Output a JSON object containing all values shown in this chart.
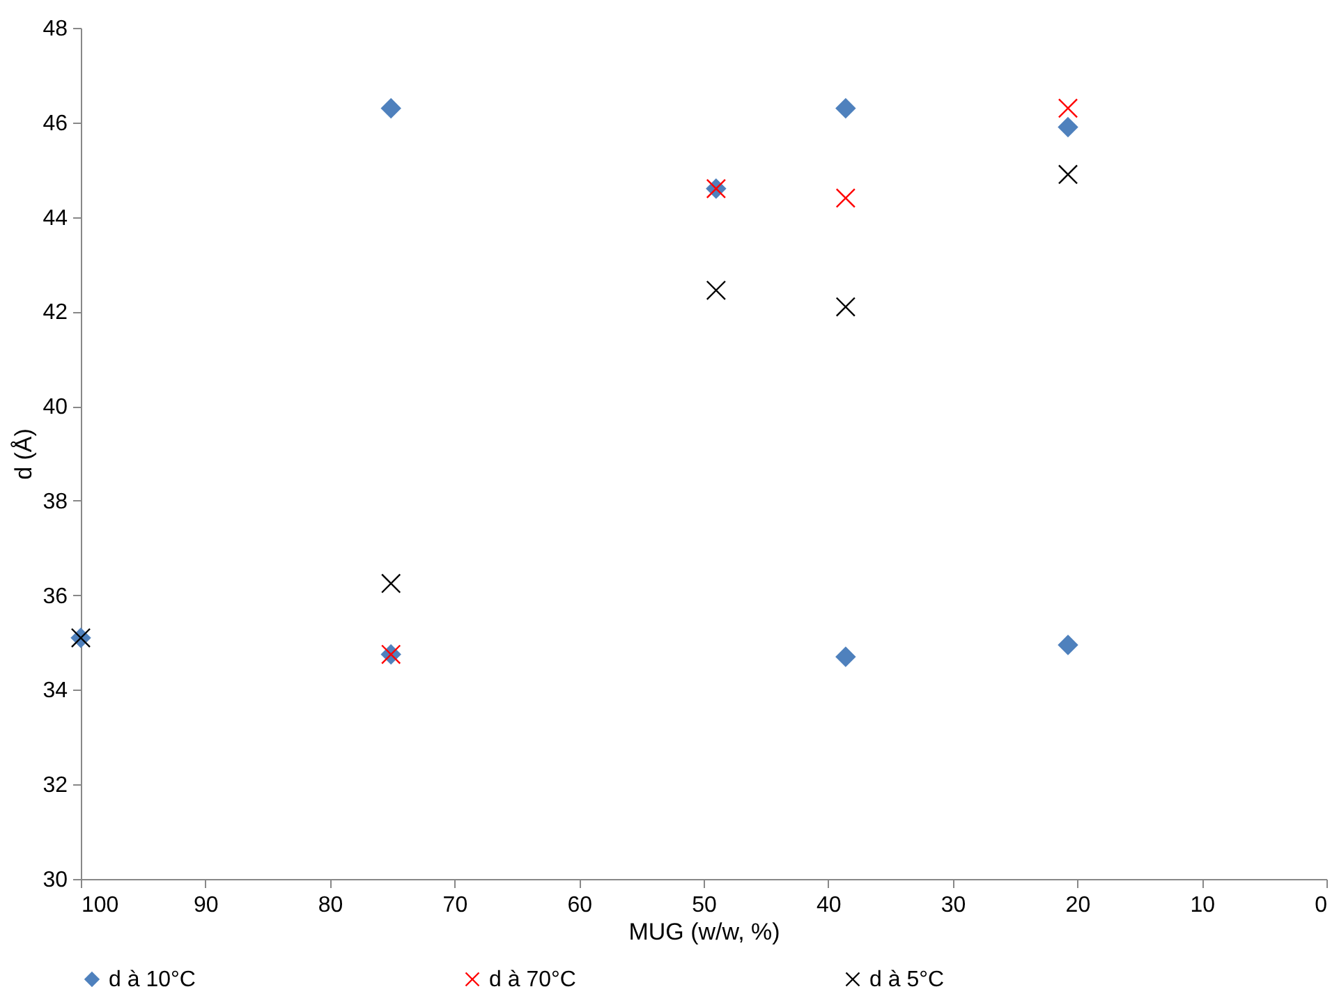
{
  "chart_data": {
    "type": "scatter",
    "xlabel": "MUG (w/w, %)",
    "ylabel": "d (Å)",
    "xlim": [
      100,
      0
    ],
    "xticks": [
      100,
      90,
      80,
      70,
      60,
      50,
      40,
      30,
      20,
      10,
      0
    ],
    "ylim": [
      30,
      48
    ],
    "yticks": [
      30,
      32,
      34,
      36,
      38,
      40,
      42,
      44,
      46,
      48
    ],
    "grid": false,
    "legend": "bottom",
    "series": [
      {
        "name": "d à 10°C",
        "color": "#4f81bd",
        "marker": "diamond",
        "x": [
          100,
          75.1,
          75.1,
          49,
          38.6,
          38.6,
          20.75,
          20.75
        ],
        "values": [
          35.1,
          46.3,
          34.75,
          44.6,
          46.3,
          34.7,
          45.9,
          34.95
        ]
      },
      {
        "name": "d à 70°C",
        "color": "#ff0000",
        "marker": "cross",
        "x": [
          75.1,
          49,
          38.6,
          20.75
        ],
        "values": [
          34.75,
          44.6,
          44.4,
          46.3
        ]
      },
      {
        "name": "d à 5°C",
        "color": "#000000",
        "marker": "cross",
        "x": [
          100,
          75.1,
          49,
          38.6,
          20.75
        ],
        "values": [
          35.1,
          36.25,
          42.45,
          42.1,
          44.9
        ]
      }
    ]
  }
}
